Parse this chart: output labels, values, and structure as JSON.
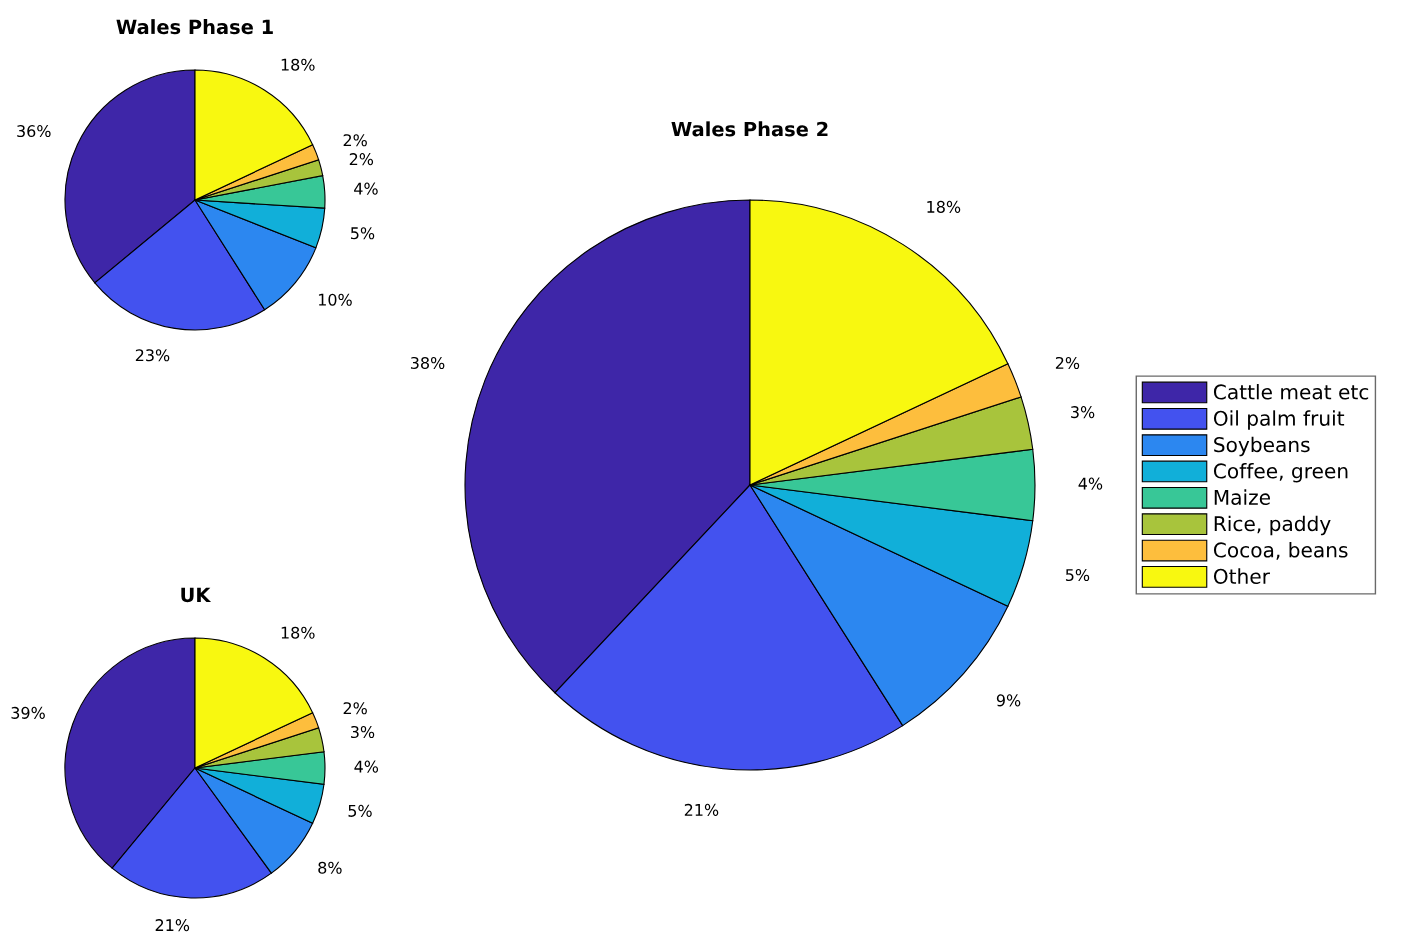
{
  "chart_data": [
    {
      "type": "pie",
      "title": "Wales Phase 1",
      "categories": [
        null,
        null,
        null,
        null,
        null,
        null,
        null,
        null
      ],
      "values": [
        36,
        23,
        10,
        5,
        4,
        2,
        2,
        18
      ],
      "value_labels": [
        "36%",
        "23%",
        "10%",
        "5%",
        "4%",
        "2%",
        "2%",
        "18%"
      ],
      "colors": [
        "#3e26a8",
        "#4352ef",
        "#2c87f0",
        "#11afd9",
        "#38c797",
        "#a8c43c",
        "#fdbe3d",
        "#f8f810"
      ]
    },
    {
      "type": "pie",
      "title": "Wales Phase 2",
      "categories": [
        "Cattle meat etc",
        "Oil palm fruit",
        "Soybeans",
        "Coffee, green",
        "Maize",
        "Rice, paddy",
        "Cocoa, beans",
        "Other"
      ],
      "values": [
        38,
        21,
        9,
        5,
        4,
        3,
        2,
        18
      ],
      "value_labels": [
        "38%",
        "21%",
        "9%",
        "5%",
        "4%",
        "3%",
        "2%",
        "18%"
      ],
      "colors": [
        "#3e26a8",
        "#4352ef",
        "#2c87f0",
        "#11afd9",
        "#38c797",
        "#a8c43c",
        "#fdbe3d",
        "#f8f810"
      ],
      "legend": "right"
    },
    {
      "type": "pie",
      "title": "UK",
      "categories": [
        null,
        null,
        null,
        null,
        null,
        null,
        null,
        null
      ],
      "values": [
        39,
        21,
        8,
        5,
        4,
        3,
        2,
        18
      ],
      "value_labels": [
        "39%",
        "21%",
        "8%",
        "5%",
        "4%",
        "3%",
        "2%",
        "18%"
      ],
      "colors": [
        "#3e26a8",
        "#4352ef",
        "#2c87f0",
        "#11afd9",
        "#38c797",
        "#a8c43c",
        "#fdbe3d",
        "#f8f810"
      ]
    }
  ]
}
